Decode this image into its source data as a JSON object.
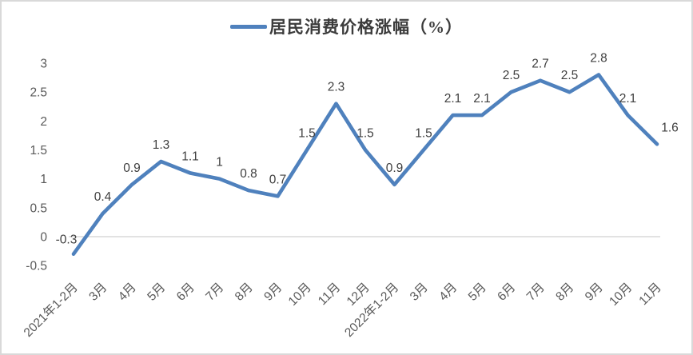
{
  "legend": {
    "title": "居民消费价格涨幅（%）"
  },
  "chart_data": {
    "type": "line",
    "title": "居民消费价格涨幅（%）",
    "legend_position": "top",
    "categories": [
      "2021年1-2月",
      "3月",
      "4月",
      "5月",
      "6月",
      "7月",
      "8月",
      "9月",
      "10月",
      "11月",
      "12月",
      "2022年1-2月",
      "3月",
      "4月",
      "5月",
      "6月",
      "7月",
      "8月",
      "9月",
      "10月",
      "11月"
    ],
    "series": [
      {
        "name": "居民消费价格涨幅（%）",
        "values": [
          -0.3,
          0.4,
          0.9,
          1.3,
          1.1,
          1,
          0.8,
          0.7,
          1.5,
          2.3,
          1.5,
          0.9,
          1.5,
          2.1,
          2.1,
          2.5,
          2.7,
          2.5,
          2.8,
          2.1,
          1.6
        ]
      }
    ],
    "data_labels": [
      "-0.3",
      "0.4",
      "0.9",
      "1.3",
      "1.1",
      "1",
      "0.8",
      "0.7",
      "1.5",
      "2.3",
      "1.5",
      "0.9",
      "1.5",
      "2.1",
      "2.1",
      "2.5",
      "2.7",
      "2.5",
      "2.8",
      "2.1",
      "1.6"
    ],
    "y_ticks": [
      "3",
      "2.5",
      "2",
      "1.5",
      "1",
      "0.5",
      "0",
      "-0.5"
    ],
    "ylim": [
      -0.5,
      3
    ],
    "grid": "zero-line-only",
    "colors": {
      "line": "#4F81BD",
      "zero_line": "#d9d9d9",
      "axis_text": "#595959",
      "label_text": "#3f3f3f"
    }
  }
}
